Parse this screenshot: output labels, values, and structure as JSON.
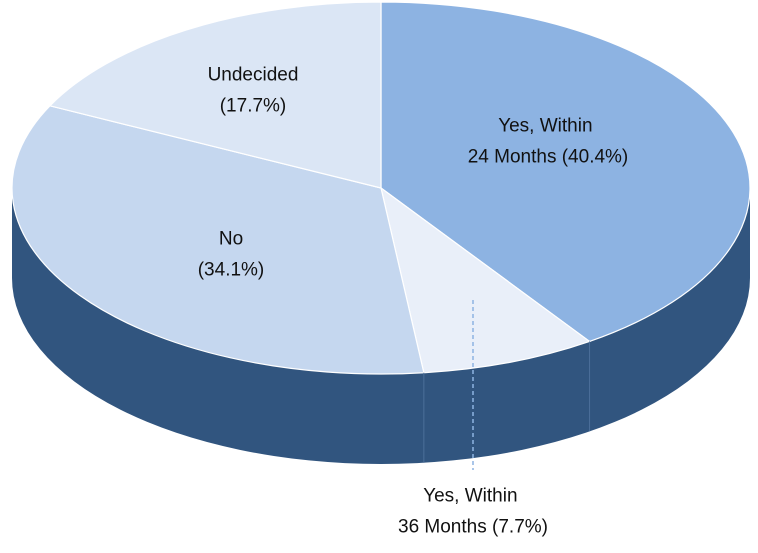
{
  "chart_data": {
    "type": "pie",
    "style": "3d",
    "categories": [
      "Yes, Within 24 Months",
      "Yes, Within 36 Months",
      "No",
      "Undecided"
    ],
    "values": [
      40.4,
      7.7,
      34.1,
      17.7
    ],
    "value_labels": [
      "(40.4%)",
      "(7.7%)",
      "(34.1%)",
      "(17.7%)"
    ],
    "colors": [
      "#8db3e2",
      "#e9eff9",
      "#c5d7ef",
      "#dbe6f5"
    ],
    "side_color": "#31557f"
  }
}
